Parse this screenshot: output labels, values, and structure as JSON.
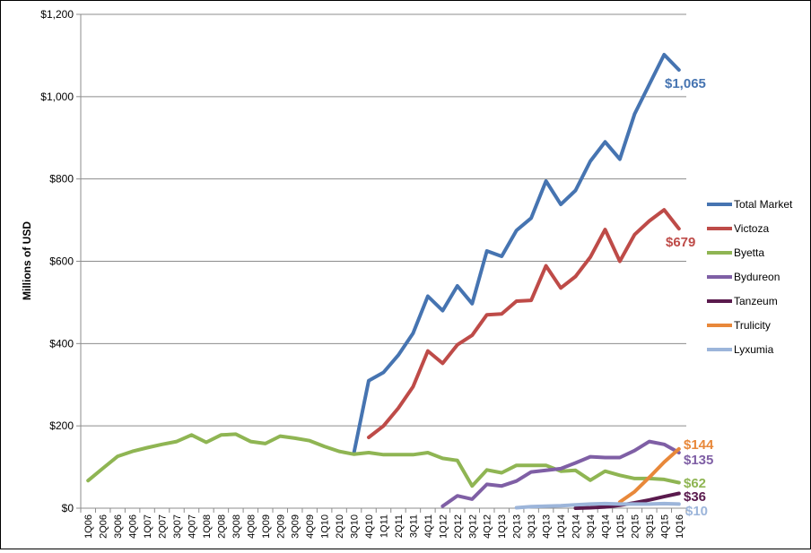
{
  "chart_data": {
    "type": "line",
    "ylabel": "Millions of USD",
    "ylim": [
      0,
      1200
    ],
    "y_ticks": [
      0,
      200,
      400,
      600,
      800,
      1000,
      1200
    ],
    "y_tick_labels": [
      "$0",
      "$200",
      "$400",
      "$600",
      "$800",
      "$1,000",
      "$1,200"
    ],
    "grid": "horizontal",
    "legend_position": "right",
    "categories": [
      "1Q06",
      "2Q06",
      "3Q06",
      "4Q06",
      "1Q07",
      "2Q07",
      "3Q07",
      "4Q07",
      "1Q08",
      "2Q08",
      "3Q08",
      "4Q08",
      "1Q09",
      "2Q09",
      "3Q09",
      "4Q09",
      "1Q10",
      "2Q10",
      "3Q10",
      "4Q10",
      "1Q11",
      "2Q11",
      "3Q11",
      "4Q11",
      "1Q12",
      "2Q12",
      "3Q12",
      "4Q12",
      "1Q13",
      "2Q13",
      "3Q13",
      "4Q13",
      "1Q14",
      "2Q14",
      "3Q14",
      "4Q14",
      "1Q15",
      "2Q15",
      "3Q15",
      "4Q15",
      "1Q16"
    ],
    "series": [
      {
        "name": "Total Market",
        "color": "#4674b1",
        "values": [
          null,
          null,
          null,
          null,
          null,
          null,
          null,
          null,
          null,
          null,
          null,
          null,
          null,
          null,
          null,
          null,
          null,
          null,
          135,
          310,
          330,
          372,
          425,
          515,
          480,
          540,
          497,
          625,
          612,
          675,
          705,
          795,
          738,
          772,
          843,
          890,
          848,
          958,
          1030,
          1102,
          1065
        ],
        "end_label": "$1,065"
      },
      {
        "name": "Victoza",
        "color": "#be4b48",
        "values": [
          null,
          null,
          null,
          null,
          null,
          null,
          null,
          null,
          null,
          null,
          null,
          null,
          null,
          null,
          null,
          null,
          null,
          null,
          null,
          172,
          200,
          243,
          295,
          382,
          352,
          397,
          420,
          470,
          472,
          503,
          505,
          589,
          535,
          563,
          610,
          677,
          600,
          665,
          698,
          725,
          679
        ],
        "end_label": "$679"
      },
      {
        "name": "Byetta",
        "color": "#8fb553",
        "values": [
          67,
          97,
          126,
          138,
          147,
          155,
          162,
          178,
          160,
          178,
          180,
          162,
          157,
          175,
          170,
          164,
          150,
          138,
          131,
          135,
          130,
          130,
          130,
          135,
          121,
          116,
          54,
          93,
          86,
          104,
          104,
          104,
          90,
          92,
          68,
          90,
          80,
          72,
          72,
          70,
          62
        ],
        "end_label": "$62"
      },
      {
        "name": "Bydureon",
        "color": "#7f5fa5",
        "values": [
          null,
          null,
          null,
          null,
          null,
          null,
          null,
          null,
          null,
          null,
          null,
          null,
          null,
          null,
          null,
          null,
          null,
          null,
          null,
          null,
          null,
          null,
          null,
          null,
          5,
          30,
          22,
          58,
          54,
          66,
          88,
          92,
          96,
          110,
          125,
          123,
          123,
          140,
          162,
          155,
          135
        ],
        "end_label": "$135"
      },
      {
        "name": "Tanzeum",
        "color": "#5a1a4d",
        "values": [
          null,
          null,
          null,
          null,
          null,
          null,
          null,
          null,
          null,
          null,
          null,
          null,
          null,
          null,
          null,
          null,
          null,
          null,
          null,
          null,
          null,
          null,
          null,
          null,
          null,
          null,
          null,
          null,
          null,
          null,
          null,
          null,
          null,
          0,
          1,
          3,
          7,
          13,
          20,
          28,
          36
        ],
        "end_label": "$36"
      },
      {
        "name": "Trulicity",
        "color": "#e8883a",
        "values": [
          null,
          null,
          null,
          null,
          null,
          null,
          null,
          null,
          null,
          null,
          null,
          null,
          null,
          null,
          null,
          null,
          null,
          null,
          null,
          null,
          null,
          null,
          null,
          null,
          null,
          null,
          null,
          null,
          null,
          null,
          null,
          null,
          null,
          null,
          null,
          null,
          15,
          40,
          75,
          112,
          144
        ],
        "end_label": "$144"
      },
      {
        "name": "Lyxumia",
        "color": "#9cb5da",
        "values": [
          null,
          null,
          null,
          null,
          null,
          null,
          null,
          null,
          null,
          null,
          null,
          null,
          null,
          null,
          null,
          null,
          null,
          null,
          null,
          null,
          null,
          null,
          null,
          null,
          null,
          null,
          null,
          null,
          null,
          1,
          4,
          5,
          6,
          8,
          10,
          11,
          10,
          10,
          10,
          11,
          10
        ],
        "end_label": "$10"
      }
    ]
  }
}
